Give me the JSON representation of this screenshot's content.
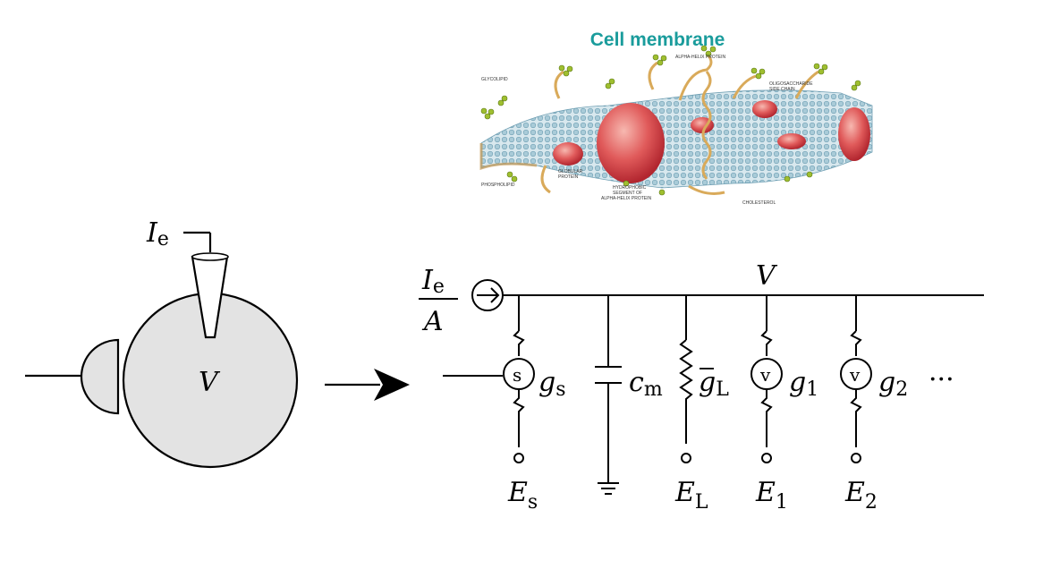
{
  "membrane": {
    "title": "Cell membrane",
    "title_color": "#1a9c9c",
    "labels": {
      "glycolipid": "GLYCOLIPID",
      "alpha_helix": "ALPHA-HELIX PROTEIN",
      "oligo_1": "OLIGOSACCHARIDE",
      "oligo_2": "SIDE CHAIN",
      "globular_1": "GLOBULAR",
      "globular_2": "PROTEIN",
      "phospholipid": "PHOSPHOLIPID",
      "hydrophobic_1": "HYDROPHOBIC",
      "hydrophobic_2": "SEGMENT OF",
      "hydrophobic_3": "ALPHA-HELIX PROTEIN",
      "cholesterol": "CHOLESTEROL"
    }
  },
  "neuron": {
    "current_main": "I",
    "current_sub": "e",
    "voltage": "V"
  },
  "circuit": {
    "ie_main": "I",
    "ie_sub": "e",
    "area": "A",
    "voltage": "V",
    "source_synapse": "s",
    "source_v": "v",
    "g_s_main": "g",
    "g_s_sub": "s",
    "c_main": "c",
    "c_sub": "m",
    "gL_main": "g",
    "gL_sub": "L",
    "g1_main": "g",
    "g1_sub": "1",
    "g2_main": "g",
    "g2_sub": "2",
    "ellipsis": "···",
    "Es_main": "E",
    "Es_sub": "s",
    "EL_main": "E",
    "EL_sub": "L",
    "E1_main": "E",
    "E1_sub": "1",
    "E2_main": "E",
    "E2_sub": "2"
  },
  "colors": {
    "cell_fill": "#e3e3e3",
    "line": "#000000",
    "protein": "#d9454a",
    "lipid_head": "#b9d4dc",
    "lipid_body": "#9ec7d6",
    "sugar": "#9fbf2f",
    "chain": "#d9aa5a"
  }
}
